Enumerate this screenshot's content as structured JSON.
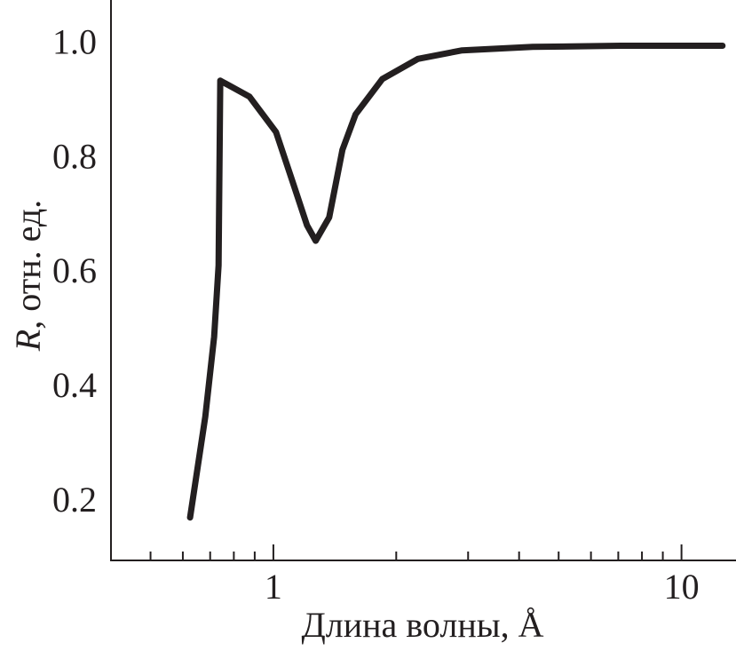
{
  "chart_data": {
    "type": "line",
    "xlabel": "Длина волны, Å",
    "ylabel_symbol": "R",
    "ylabel_unit": ", отн. ед.",
    "xscale": "log",
    "xlim": [
      0.4,
      13.6
    ],
    "ylim": [
      0.1,
      1.08
    ],
    "xticks": [
      1,
      10
    ],
    "xminorticks": [
      0.5,
      0.6,
      0.7,
      0.8,
      0.9,
      2,
      3,
      4,
      5,
      6,
      7,
      8,
      9
    ],
    "yticks": [
      0.2,
      0.4,
      0.6,
      0.8,
      {
        "value": 1.0,
        "label": "1.0"
      }
    ],
    "grid": false,
    "series": [
      {
        "color": "#231f20",
        "x": [
          0.625,
          0.681,
          0.716,
          0.734,
          0.741,
          0.874,
          1.015,
          1.122,
          1.209,
          1.27,
          1.37,
          1.476,
          1.59,
          1.85,
          2.26,
          2.9,
          4.32,
          7.1,
          12.6
        ],
        "values": [
          0.175,
          0.351,
          0.491,
          0.616,
          0.939,
          0.911,
          0.849,
          0.756,
          0.686,
          0.659,
          0.7,
          0.818,
          0.88,
          0.942,
          0.977,
          0.992,
          0.998,
          1.0,
          1.0
        ]
      }
    ]
  }
}
